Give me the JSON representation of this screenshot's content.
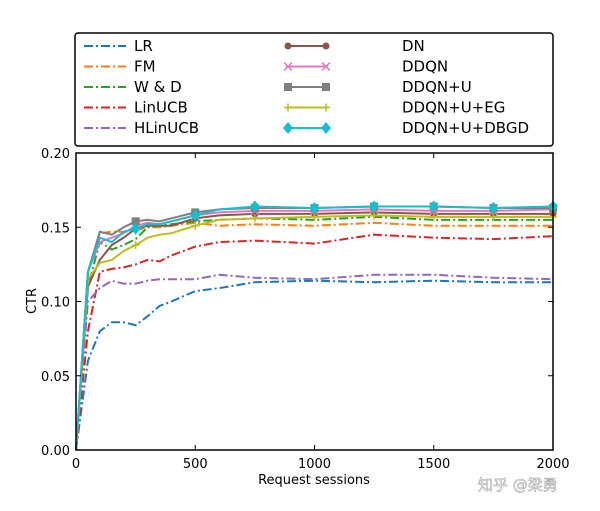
{
  "chart_data": {
    "type": "line",
    "title": "",
    "xlabel": "Request sessions",
    "ylabel": "CTR",
    "xlim": [
      0,
      2000
    ],
    "ylim": [
      0,
      0.2
    ],
    "xticks": [
      "0",
      "500",
      "1000",
      "1500",
      "2000"
    ],
    "yticks": [
      "0.00",
      "0.05",
      "0.10",
      "0.15",
      "0.20"
    ],
    "legend_placement": "top (above plot), two columns",
    "grid": false,
    "x": [
      0,
      50,
      100,
      150,
      200,
      250,
      300,
      350,
      400,
      500,
      600,
      750,
      1000,
      1250,
      1500,
      1750,
      2000
    ],
    "series": [
      {
        "name": "LR",
        "color": "#1f77b4",
        "dash": "dashdot",
        "marker": "",
        "values": [
          0,
          0.06,
          0.08,
          0.086,
          0.086,
          0.084,
          0.09,
          0.097,
          0.1,
          0.107,
          0.109,
          0.113,
          0.114,
          0.113,
          0.114,
          0.113,
          0.113
        ]
      },
      {
        "name": "FM",
        "color": "#ff7f0e",
        "dash": "dashdot",
        "marker": "",
        "values": [
          0,
          0.12,
          0.146,
          0.147,
          0.147,
          0.148,
          0.15,
          0.15,
          0.151,
          0.153,
          0.151,
          0.152,
          0.151,
          0.153,
          0.151,
          0.151,
          0.151
        ]
      },
      {
        "name": "W & D",
        "color": "#2ca02c",
        "dash": "dashdot",
        "marker": "",
        "values": [
          0,
          0.11,
          0.14,
          0.135,
          0.138,
          0.142,
          0.15,
          0.151,
          0.152,
          0.154,
          0.155,
          0.156,
          0.155,
          0.157,
          0.155,
          0.155,
          0.155
        ]
      },
      {
        "name": "LinUCB",
        "color": "#d62728",
        "dash": "dashdot",
        "marker": "",
        "values": [
          0,
          0.08,
          0.12,
          0.122,
          0.123,
          0.125,
          0.128,
          0.127,
          0.131,
          0.137,
          0.14,
          0.141,
          0.139,
          0.145,
          0.143,
          0.142,
          0.144
        ]
      },
      {
        "name": "HLinUCB",
        "color": "#9467bd",
        "dash": "dashdot",
        "marker": "",
        "values": [
          0,
          0.1,
          0.109,
          0.114,
          0.112,
          0.112,
          0.114,
          0.115,
          0.115,
          0.115,
          0.118,
          0.116,
          0.115,
          0.118,
          0.118,
          0.116,
          0.115
        ]
      },
      {
        "name": "DN",
        "color": "#8c564b",
        "dash": "solid",
        "marker": "circle",
        "values": [
          0,
          0.11,
          0.128,
          0.138,
          0.143,
          0.149,
          0.151,
          0.151,
          0.151,
          0.156,
          0.158,
          0.159,
          0.159,
          0.16,
          0.159,
          0.159,
          0.159
        ]
      },
      {
        "name": "DDQN",
        "color": "#e377c2",
        "dash": "solid",
        "marker": "x",
        "values": [
          0,
          0.12,
          0.14,
          0.143,
          0.146,
          0.151,
          0.153,
          0.152,
          0.154,
          0.158,
          0.16,
          0.161,
          0.161,
          0.162,
          0.161,
          0.161,
          0.162
        ]
      },
      {
        "name": "DDQN+U",
        "color": "#7f7f7f",
        "dash": "solid",
        "marker": "square",
        "values": [
          0,
          0.12,
          0.147,
          0.145,
          0.15,
          0.154,
          0.155,
          0.154,
          0.156,
          0.16,
          0.162,
          0.163,
          0.163,
          0.164,
          0.164,
          0.163,
          0.163
        ]
      },
      {
        "name": "DDQN+U+EG",
        "color": "#bcbd22",
        "dash": "solid",
        "marker": "plus",
        "values": [
          0,
          0.115,
          0.126,
          0.128,
          0.134,
          0.138,
          0.143,
          0.145,
          0.146,
          0.151,
          0.155,
          0.156,
          0.157,
          0.158,
          0.157,
          0.157,
          0.157
        ]
      },
      {
        "name": "DDQN+U+DBGD",
        "color": "#17becf",
        "dash": "solid",
        "marker": "diamond",
        "values": [
          0,
          0.12,
          0.143,
          0.14,
          0.147,
          0.149,
          0.152,
          0.152,
          0.154,
          0.158,
          0.162,
          0.164,
          0.163,
          0.164,
          0.164,
          0.163,
          0.164
        ]
      }
    ]
  },
  "watermark": "知乎 @梁勇"
}
